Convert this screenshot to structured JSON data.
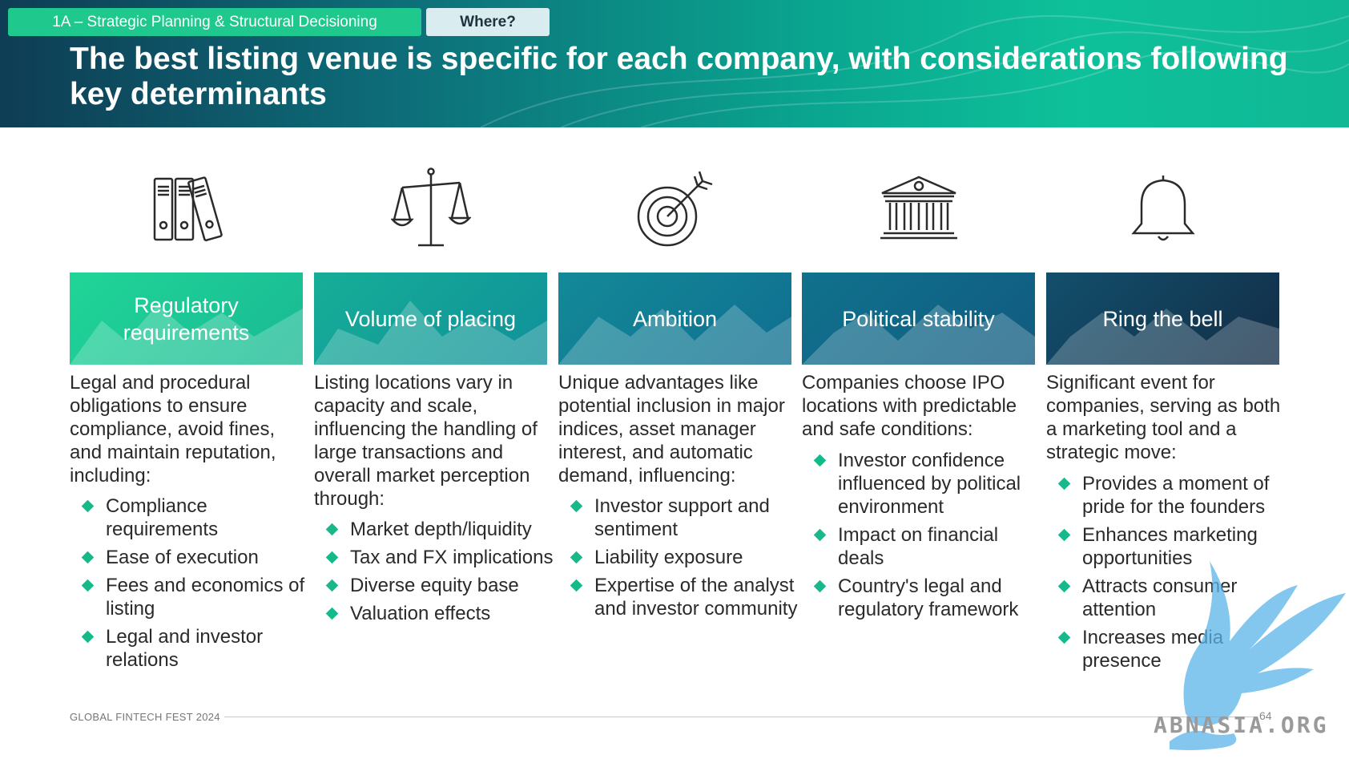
{
  "header": {
    "section_tag": "1A – Strategic Planning & Structural Decisioning",
    "where_tag": "Where?",
    "title": "The best listing venue is specific for each company, with considerations following key determinants"
  },
  "columns": [
    {
      "icon": "binders-icon",
      "card_title": "Regulatory requirements",
      "description": "Legal and procedural obligations to ensure compliance, avoid fines, and maintain reputation, including:",
      "bullets": [
        "Compliance requirements",
        "Ease of execution",
        "Fees and economics of listing",
        "Legal and investor relations"
      ]
    },
    {
      "icon": "scales-icon",
      "card_title": "Volume of placing",
      "description": "Listing locations vary in capacity and scale, influencing the handling of large transactions and overall market perception through:",
      "bullets": [
        "Market depth/liquidity",
        "Tax and FX implications",
        "Diverse equity base",
        "Valuation effects"
      ]
    },
    {
      "icon": "target-icon",
      "card_title": "Ambition",
      "description": "Unique advantages like potential inclusion in major indices, asset manager interest, and automatic demand, influencing:",
      "bullets": [
        "Investor support and sentiment",
        "Liability exposure",
        "Expertise of the analyst and investor community"
      ]
    },
    {
      "icon": "bank-building-icon",
      "card_title": "Political stability",
      "description": "Companies choose IPO locations with predictable and safe conditions:",
      "bullets": [
        "Investor confidence influenced by political environment",
        "Impact on financial deals",
        "Country's legal and regulatory framework"
      ]
    },
    {
      "icon": "bell-icon",
      "card_title": "Ring the bell",
      "description": "Significant event for companies, serving as both a marketing tool and a strategic move:",
      "bullets": [
        "Provides a moment of pride for the founders",
        "Enhances marketing opportunities",
        "Attracts consumer attention",
        "Increases media presence"
      ]
    }
  ],
  "colors": {
    "card_1": "#1ccf92",
    "card_2": "#13a09a",
    "card_3": "#117d95",
    "card_4": "#106586",
    "card_5": "#12384f",
    "bullet": "#16b98a"
  },
  "footer": {
    "event": "GLOBAL FINTECH FEST 2024",
    "page_number": "64"
  },
  "watermark": {
    "text": "ABNASIA.ORG"
  }
}
